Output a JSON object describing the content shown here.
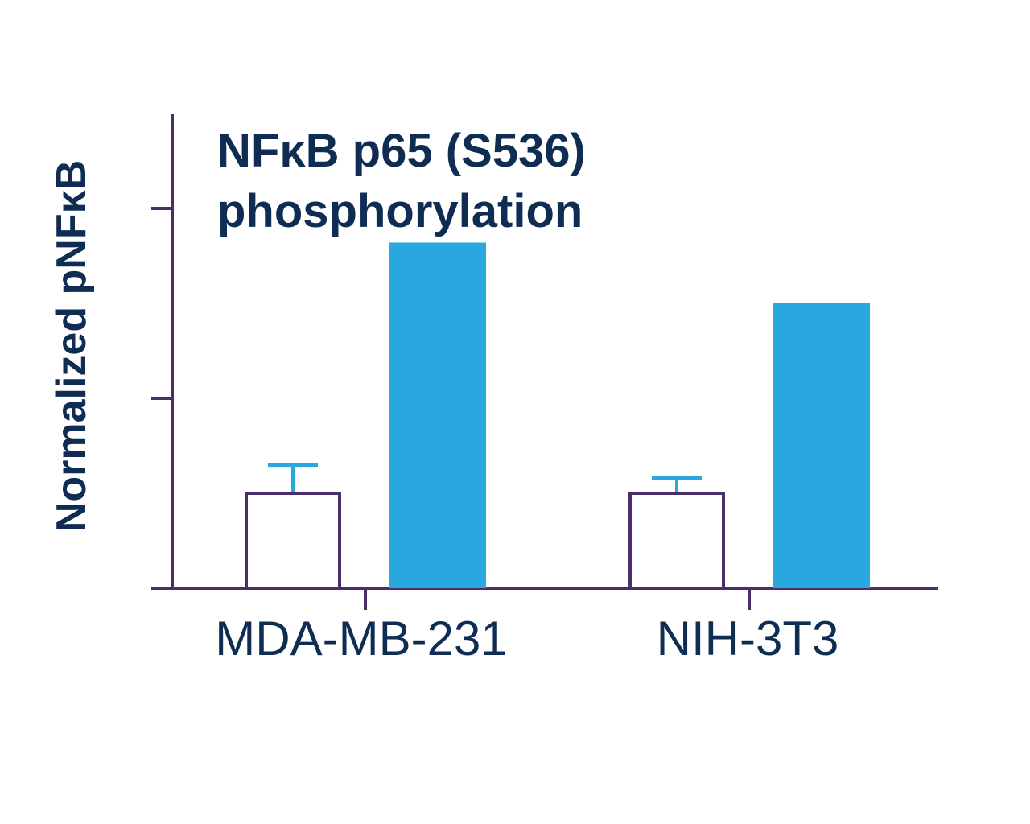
{
  "chart_data": {
    "type": "bar",
    "title_lines": [
      "NFκB p65 (S536)",
      "phosphorylation"
    ],
    "ylabel": "Normalized pNFκB",
    "xlabel": "",
    "categories": [
      "MDA-MB-231",
      "NIH-3T3"
    ],
    "ylim": [
      0,
      2.5
    ],
    "yticks": [
      0,
      1,
      2
    ],
    "ytick_labels_shown": false,
    "grid": false,
    "legend": "none",
    "series": [
      {
        "values": [
          0.5,
          0.5
        ],
        "error": [
          0.15,
          0.08
        ],
        "fill": "#ffffff",
        "stroke": "#4b2d6b"
      },
      {
        "values": [
          1.82,
          1.5
        ],
        "fill": "#29a8e0",
        "stroke": "none"
      }
    ]
  },
  "colors": {
    "axis": "#4b2d6b",
    "text": "#0f2d52",
    "accent": "#29a8e0",
    "error_bar": "#29a8e0"
  }
}
